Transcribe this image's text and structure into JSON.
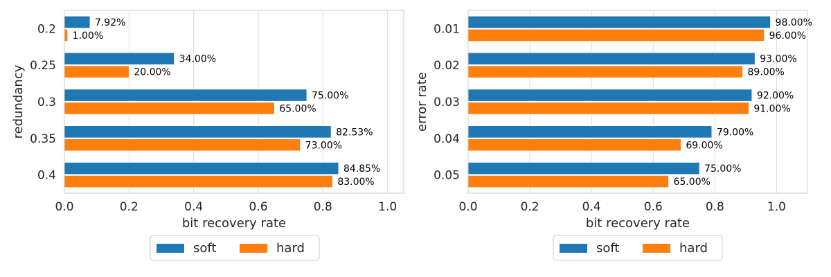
{
  "chart_data": [
    {
      "type": "bar",
      "orientation": "horizontal",
      "categories": [
        "0.2",
        "0.25",
        "0.3",
        "0.35",
        "0.4"
      ],
      "series": [
        {
          "name": "soft",
          "color": "#1f77b4",
          "values": [
            0.0792,
            0.34,
            0.75,
            0.8253,
            0.8485
          ],
          "labels": [
            "7.92%",
            "34.00%",
            "75.00%",
            "82.53%",
            "84.85%"
          ]
        },
        {
          "name": "hard",
          "color": "#ff7f0e",
          "values": [
            0.01,
            0.2,
            0.65,
            0.73,
            0.83
          ],
          "labels": [
            "1.00%",
            "20.00%",
            "65.00%",
            "73.00%",
            "83.00%"
          ]
        }
      ],
      "xlabel": "bit recovery rate",
      "ylabel": "redundancy",
      "xlim": [
        0,
        1.05
      ],
      "xticks": [
        "0.0",
        "0.2",
        "0.4",
        "0.6",
        "0.8",
        "1.0"
      ],
      "grid": "x",
      "legend": "below"
    },
    {
      "type": "bar",
      "orientation": "horizontal",
      "categories": [
        "0.01",
        "0.02",
        "0.03",
        "0.04",
        "0.05"
      ],
      "series": [
        {
          "name": "soft",
          "color": "#1f77b4",
          "values": [
            0.98,
            0.93,
            0.92,
            0.79,
            0.75
          ],
          "labels": [
            "98.00%",
            "93.00%",
            "92.00%",
            "79.00%",
            "75.00%"
          ]
        },
        {
          "name": "hard",
          "color": "#ff7f0e",
          "values": [
            0.96,
            0.89,
            0.91,
            0.69,
            0.65
          ],
          "labels": [
            "96.00%",
            "89.00%",
            "91.00%",
            "69.00%",
            "65.00%"
          ]
        }
      ],
      "xlabel": "bit recovery rate",
      "ylabel": "error rate",
      "xlim": [
        0,
        1.1
      ],
      "xticks": [
        "0.0",
        "0.2",
        "0.4",
        "0.6",
        "0.8",
        "1.0"
      ],
      "grid": "x",
      "legend": "below"
    }
  ]
}
